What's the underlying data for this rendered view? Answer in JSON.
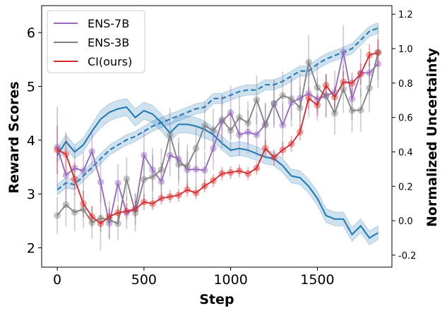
{
  "chart_data": {
    "type": "line",
    "xlabel": "Step",
    "ylabel_left": "Reward Scores",
    "ylabel_right": "Normalized Uncertainty",
    "xlim": [
      -90,
      1930
    ],
    "ylim_left": [
      1.64,
      6.5
    ],
    "ylim_right": [
      -0.27,
      1.25
    ],
    "xticks": [
      0,
      500,
      1000,
      1500
    ],
    "yticks_left": [
      2,
      3,
      4,
      5,
      6
    ],
    "yticks_right": [
      "-0.2",
      "0.0",
      "0.2",
      "0.4",
      "0.6",
      "0.8",
      "1.0",
      "1.2"
    ],
    "colors": {
      "ens7b": "#9467bd",
      "ens3b": "#7f7f7f",
      "ci": "#d62728",
      "unc": "#1f77b4"
    },
    "legend": [
      {
        "key": "ens7b",
        "label": "ENS-7B"
      },
      {
        "key": "ens3b",
        "label": "ENS-3B"
      },
      {
        "key": "ci",
        "label": "CI(ours)"
      }
    ],
    "x": [
      0,
      50,
      100,
      150,
      200,
      250,
      300,
      350,
      400,
      450,
      500,
      550,
      600,
      650,
      700,
      750,
      800,
      850,
      900,
      950,
      1000,
      1050,
      1100,
      1150,
      1200,
      1250,
      1300,
      1350,
      1400,
      1450,
      1500,
      1550,
      1600,
      1650,
      1700,
      1750,
      1800,
      1850
    ],
    "series": [
      {
        "key": "ens7b",
        "name": "ENS-7B",
        "values": [
          3.87,
          3.35,
          3.48,
          3.43,
          3.79,
          3.22,
          2.45,
          3.2,
          2.65,
          2.72,
          3.72,
          3.45,
          3.23,
          3.72,
          3.65,
          3.45,
          3.46,
          3.44,
          3.85,
          4.35,
          4.51,
          4.1,
          4.15,
          4.1,
          4.3,
          4.68,
          4.28,
          4.7,
          4.78,
          4.87,
          4.76,
          4.83,
          4.89,
          5.64,
          4.77,
          5.25,
          5.25,
          5.42
        ],
        "err": [
          0.75,
          0.5,
          0.4,
          0.35,
          0.4,
          0.4,
          0.3,
          0.35,
          0.3,
          0.3,
          0.45,
          0.4,
          0.35,
          0.4,
          0.4,
          0.35,
          0.35,
          0.35,
          0.4,
          0.5,
          0.5,
          0.4,
          0.4,
          0.4,
          0.4,
          0.45,
          0.4,
          0.45,
          0.45,
          0.45,
          0.4,
          0.4,
          0.4,
          0.5,
          0.4,
          0.45,
          0.4,
          0.45
        ]
      },
      {
        "key": "ens3b",
        "name": "ENS-3B",
        "values": [
          2.6,
          2.8,
          2.66,
          2.72,
          2.47,
          2.55,
          2.52,
          2.45,
          3.28,
          2.65,
          3.27,
          3.32,
          3.45,
          4.1,
          3.55,
          3.52,
          3.85,
          4.27,
          4.18,
          4.38,
          4.18,
          4.42,
          4.32,
          4.75,
          4.28,
          4.68,
          4.83,
          4.77,
          4.6,
          5.45,
          4.98,
          4.82,
          4.5,
          4.95,
          4.55,
          4.56,
          4.97,
          5.63
        ],
        "err": [
          0.35,
          0.4,
          0.35,
          0.35,
          0.3,
          0.6,
          0.35,
          0.3,
          0.4,
          0.35,
          0.45,
          0.4,
          0.4,
          0.5,
          0.4,
          0.4,
          0.4,
          0.45,
          0.4,
          0.45,
          0.4,
          0.4,
          0.4,
          0.45,
          0.4,
          0.4,
          0.45,
          0.4,
          0.4,
          0.5,
          0.45,
          0.4,
          0.4,
          0.45,
          0.4,
          0.4,
          0.45,
          0.5
        ]
      },
      {
        "key": "ci",
        "name": "CI(ours)",
        "values": [
          3.82,
          3.74,
          3.28,
          2.82,
          2.58,
          2.45,
          2.58,
          2.65,
          2.68,
          2.72,
          2.85,
          2.82,
          2.92,
          2.95,
          2.98,
          3.08,
          3.02,
          3.15,
          3.25,
          3.38,
          3.4,
          3.43,
          3.38,
          3.48,
          3.85,
          3.68,
          3.82,
          3.93,
          4.15,
          4.78,
          4.65,
          5.02,
          4.8,
          5.08,
          5.06,
          5.23,
          5.58,
          5.63
        ],
        "err": [
          0.45,
          0.4,
          0.3,
          0.25,
          0.2,
          0.15,
          0.15,
          0.15,
          0.15,
          0.15,
          0.15,
          0.12,
          0.12,
          0.12,
          0.12,
          0.12,
          0.12,
          0.12,
          0.12,
          0.12,
          0.12,
          0.12,
          0.12,
          0.12,
          0.15,
          0.15,
          0.15,
          0.15,
          0.15,
          0.2,
          0.2,
          0.2,
          0.2,
          0.2,
          0.2,
          0.2,
          0.2,
          0.25
        ]
      }
    ],
    "uncertainty_series": [
      {
        "name": "uncertainty-solid",
        "style": "solid",
        "axis": "right",
        "values": [
          0.38,
          0.46,
          0.4,
          0.44,
          0.52,
          0.59,
          0.63,
          0.65,
          0.66,
          0.6,
          0.64,
          0.62,
          0.57,
          0.51,
          0.56,
          0.56,
          0.55,
          0.53,
          0.5,
          0.45,
          0.41,
          0.42,
          0.41,
          0.39,
          0.37,
          0.36,
          0.32,
          0.26,
          0.25,
          0.2,
          0.13,
          0.03,
          0.01,
          0.01,
          -0.08,
          -0.03,
          -0.1,
          -0.07
        ],
        "band": [
          0.04,
          0.04,
          0.04,
          0.04,
          0.04,
          0.05,
          0.05,
          0.05,
          0.05,
          0.05,
          0.05,
          0.05,
          0.05,
          0.05,
          0.05,
          0.05,
          0.05,
          0.05,
          0.04,
          0.04,
          0.04,
          0.04,
          0.04,
          0.04,
          0.04,
          0.04,
          0.04,
          0.04,
          0.04,
          0.04,
          0.04,
          0.04,
          0.04,
          0.04,
          0.04,
          0.04,
          0.04,
          0.04
        ]
      },
      {
        "name": "uncertainty-dashed",
        "style": "dashed",
        "axis": "right",
        "values": [
          0.18,
          0.22,
          0.21,
          0.26,
          0.31,
          0.36,
          0.41,
          0.44,
          0.47,
          0.49,
          0.52,
          0.55,
          0.57,
          0.59,
          0.61,
          0.63,
          0.65,
          0.66,
          0.71,
          0.71,
          0.73,
          0.75,
          0.76,
          0.76,
          0.79,
          0.79,
          0.81,
          0.84,
          0.87,
          0.87,
          0.91,
          0.94,
          0.96,
          0.98,
          1.0,
          1.05,
          1.1,
          1.12
        ],
        "band": [
          0.03,
          0.03,
          0.03,
          0.03,
          0.03,
          0.03,
          0.03,
          0.03,
          0.03,
          0.03,
          0.03,
          0.03,
          0.03,
          0.03,
          0.03,
          0.03,
          0.03,
          0.03,
          0.03,
          0.03,
          0.03,
          0.03,
          0.03,
          0.03,
          0.03,
          0.03,
          0.03,
          0.03,
          0.03,
          0.03,
          0.03,
          0.03,
          0.03,
          0.03,
          0.03,
          0.03,
          0.03,
          0.03
        ]
      }
    ]
  }
}
